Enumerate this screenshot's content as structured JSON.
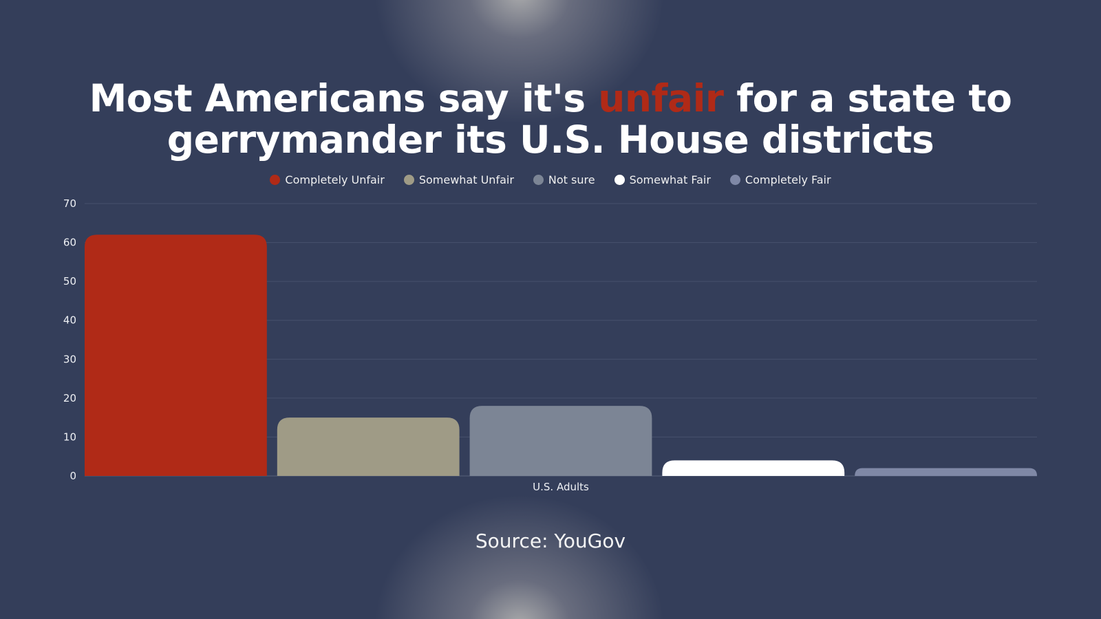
{
  "header": {
    "title_part1": "Most Americans say it's ",
    "title_accent": "unfair",
    "title_part2": " for a state to gerrymander its U.S. House districts"
  },
  "chart_data": {
    "type": "bar",
    "categories": [
      "U.S. Adults"
    ],
    "series": [
      {
        "name": "Completely Unfair",
        "values": [
          62
        ],
        "color": "#b02a17"
      },
      {
        "name": "Somewhat Unfair",
        "values": [
          15
        ],
        "color": "#9f9b86"
      },
      {
        "name": "Not sure",
        "values": [
          18
        ],
        "color": "#7c8595"
      },
      {
        "name": "Somewhat Fair",
        "values": [
          4
        ],
        "color": "#ffffff"
      },
      {
        "name": "Completely Fair",
        "values": [
          2
        ],
        "color": "#7f88a6"
      }
    ],
    "ylim": [
      0,
      70
    ],
    "yticks": [
      "0",
      "10",
      "20",
      "30",
      "40",
      "50",
      "60",
      "70"
    ],
    "grid": true,
    "legend_position": "top-center",
    "xlabel": "",
    "ylabel": ""
  },
  "footer": {
    "source": "Source: YouGov"
  },
  "colors": {
    "background": "#343e5a",
    "accent": "#b02a17"
  }
}
